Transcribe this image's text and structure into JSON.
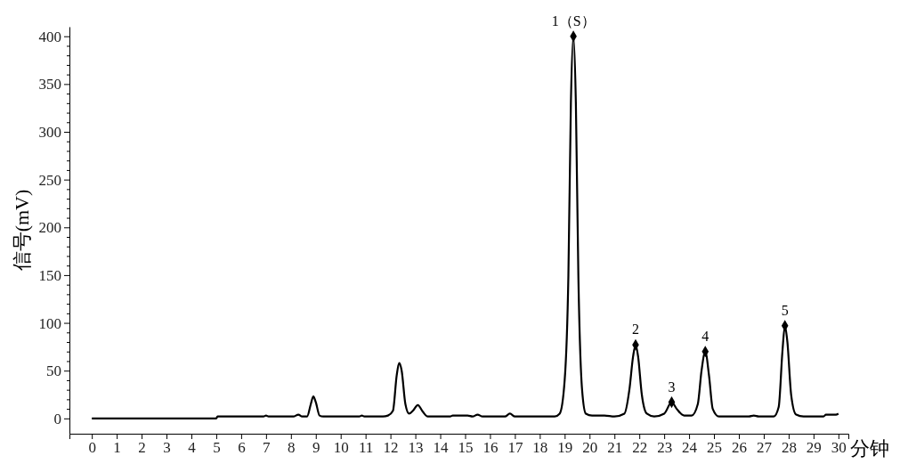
{
  "chart_data": {
    "type": "line",
    "xlabel": "分钟",
    "ylabel": "信号(mV)",
    "xlim": [
      -0.9,
      30.4
    ],
    "ylim": [
      -16,
      410
    ],
    "xticks": [
      0,
      1,
      2,
      3,
      4,
      5,
      6,
      7,
      8,
      9,
      10,
      11,
      12,
      13,
      14,
      15,
      16,
      17,
      18,
      19,
      20,
      21,
      22,
      23,
      24,
      25,
      26,
      27,
      28,
      29,
      30
    ],
    "yticks": [
      0,
      {
        "value": 10,
        "label": null
      },
      {
        "value": 20,
        "label": null
      },
      {
        "value": 30,
        "label": null
      },
      {
        "value": 40,
        "label": null
      },
      50,
      {
        "value": 60,
        "label": null
      },
      {
        "value": 70,
        "label": null
      },
      {
        "value": 80,
        "label": null
      },
      {
        "value": 90,
        "label": null
      },
      100,
      {
        "value": 110,
        "label": null
      },
      {
        "value": 120,
        "label": null
      },
      {
        "value": 130,
        "label": null
      },
      {
        "value": 140,
        "label": null
      },
      150,
      {
        "value": 160,
        "label": null
      },
      {
        "value": 170,
        "label": null
      },
      {
        "value": 180,
        "label": null
      },
      {
        "value": 190,
        "label": null
      },
      200,
      {
        "value": 210,
        "label": null
      },
      {
        "value": 220,
        "label": null
      },
      {
        "value": 230,
        "label": null
      },
      {
        "value": 240,
        "label": null
      },
      250,
      {
        "value": 260,
        "label": null
      },
      {
        "value": 270,
        "label": null
      },
      {
        "value": 280,
        "label": null
      },
      {
        "value": 290,
        "label": null
      },
      300,
      {
        "value": 310,
        "label": null
      },
      {
        "value": 320,
        "label": null
      },
      {
        "value": 330,
        "label": null
      },
      {
        "value": 340,
        "label": null
      },
      350,
      {
        "value": 360,
        "label": null
      },
      {
        "value": 370,
        "label": null
      },
      {
        "value": 380,
        "label": null
      },
      {
        "value": 390,
        "label": null
      },
      400
    ],
    "grid": false,
    "series": [
      {
        "color": "#000000",
        "line_style": "solid",
        "marker": "none",
        "x": [
          0,
          5,
          5.05,
          6.9,
          7.0,
          7.1,
          8.1,
          8.3,
          8.45,
          8.65,
          8.8,
          8.9,
          9.0,
          9.15,
          9.3,
          10.75,
          10.85,
          10.95,
          11.7,
          11.9,
          12.1,
          12.25,
          12.35,
          12.45,
          12.6,
          12.75,
          12.9,
          13.1,
          13.3,
          13.5,
          14.4,
          14.5,
          15.1,
          15.3,
          15.5,
          15.7,
          16.6,
          16.8,
          17.0,
          18.6,
          18.8,
          19.0,
          19.15,
          19.25,
          19.35,
          19.45,
          19.55,
          19.7,
          19.85,
          20.1,
          20.6,
          21.0,
          21.4,
          21.6,
          21.75,
          21.85,
          21.95,
          22.1,
          22.3,
          22.6,
          23.0,
          23.3,
          23.5,
          23.8,
          24.1,
          24.35,
          24.5,
          24.65,
          24.8,
          24.95,
          25.2,
          26.4,
          26.6,
          26.8,
          27.4,
          27.6,
          27.75,
          27.85,
          27.95,
          28.1,
          28.3,
          28.6,
          29.4,
          29.5,
          29.9,
          30
        ],
        "values": [
          0,
          0,
          2,
          2,
          3,
          2,
          2,
          4,
          2,
          2,
          15,
          23,
          17,
          3,
          2,
          2,
          3,
          2,
          2,
          3,
          8,
          45,
          58,
          50,
          15,
          5,
          8,
          14,
          7,
          2,
          2,
          3,
          3,
          2,
          4,
          2,
          2,
          5,
          2,
          2,
          5,
          40,
          150,
          330,
          400,
          330,
          150,
          30,
          5,
          3,
          3,
          2,
          5,
          30,
          65,
          77,
          65,
          25,
          5,
          2,
          5,
          17,
          10,
          3,
          3,
          15,
          50,
          70,
          45,
          10,
          2,
          2,
          3,
          2,
          2,
          12,
          70,
          97,
          80,
          25,
          4,
          2,
          2,
          4,
          4,
          5
        ]
      },
      {
        "type": "scatter",
        "color": "#000000",
        "marker": "diamond",
        "x": [
          19.35,
          21.85,
          23.3,
          24.65,
          27.85
        ],
        "values": [
          400,
          77,
          17,
          70,
          97
        ]
      }
    ],
    "annotations": [
      {
        "text": "1（S）",
        "x": 19.35,
        "y": 400
      },
      {
        "text": "2",
        "x": 21.85,
        "y": 77
      },
      {
        "text": "3",
        "x": 23.3,
        "y": 17
      },
      {
        "text": "4",
        "x": 24.65,
        "y": 70
      },
      {
        "text": "5",
        "x": 27.85,
        "y": 97
      }
    ]
  }
}
